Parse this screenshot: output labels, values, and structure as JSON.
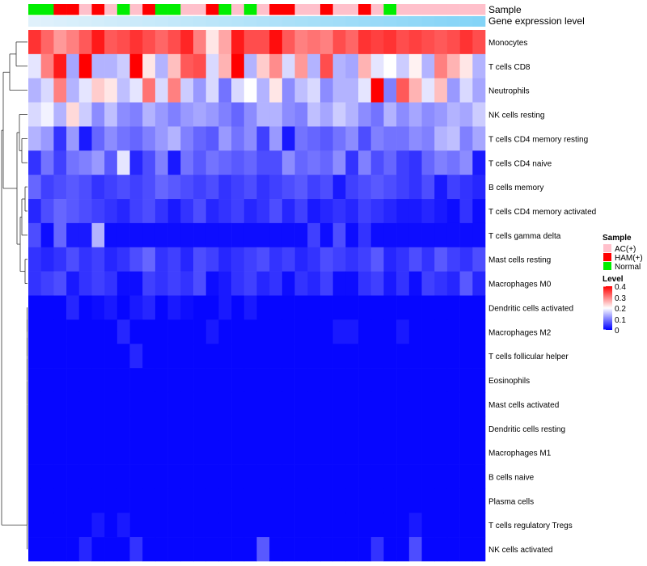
{
  "chart_data": {
    "type": "heatmap",
    "annotation_labels": [
      "Sample",
      "Gene expression level"
    ],
    "rows": [
      "Monocytes",
      "T cells CD8",
      "Neutrophils",
      "NK cells resting",
      "T cells CD4 memory resting",
      "T cells CD4 naive",
      "B cells memory",
      "T cells CD4 memory activated",
      "T cells gamma delta",
      "Mast cells resting",
      "Macrophages M0",
      "Dendritic cells activated",
      "Macrophages M2",
      "T cells follicular helper",
      "Eosinophils",
      "Mast cells activated",
      "Dendritic cells resting",
      "Macrophages M1",
      "B cells naive",
      "Plasma cells",
      "T cells regulatory  Tregs",
      "NK cells activated"
    ],
    "sample_groups": [
      "Normal",
      "Normal",
      "HAM(+)",
      "HAM(+)",
      "AC(+)",
      "HAM(+)",
      "AC(+)",
      "Normal",
      "AC(+)",
      "HAM(+)",
      "Normal",
      "Normal",
      "AC(+)",
      "AC(+)",
      "HAM(+)",
      "Normal",
      "AC(+)",
      "Normal",
      "AC(+)",
      "HAM(+)",
      "HAM(+)",
      "AC(+)",
      "AC(+)",
      "HAM(+)",
      "AC(+)",
      "AC(+)",
      "HAM(+)",
      "AC(+)",
      "Normal",
      "AC(+)",
      "AC(+)",
      "AC(+)",
      "AC(+)",
      "AC(+)",
      "AC(+)",
      "AC(+)"
    ],
    "expression_level": [
      0.02,
      0.04,
      0.06,
      0.08,
      0.1,
      0.12,
      0.14,
      0.16,
      0.18,
      0.2,
      0.22,
      0.24,
      0.26,
      0.28,
      0.3,
      0.32,
      0.34,
      0.36,
      0.38,
      0.4,
      0.42,
      0.44,
      0.46,
      0.48,
      0.5,
      0.52,
      0.54,
      0.56,
      0.58,
      0.6,
      0.62,
      0.64,
      0.66,
      0.68,
      0.7,
      0.72
    ],
    "values": [
      [
        0.36,
        0.32,
        0.28,
        0.3,
        0.33,
        0.38,
        0.33,
        0.34,
        0.36,
        0.34,
        0.32,
        0.34,
        0.37,
        0.3,
        0.22,
        0.27,
        0.38,
        0.34,
        0.34,
        0.39,
        0.33,
        0.3,
        0.31,
        0.3,
        0.34,
        0.32,
        0.36,
        0.35,
        0.36,
        0.34,
        0.35,
        0.34,
        0.33,
        0.34,
        0.36,
        0.34
      ],
      [
        0.18,
        0.3,
        0.38,
        0.13,
        0.4,
        0.14,
        0.14,
        0.16,
        0.4,
        0.22,
        0.14,
        0.25,
        0.33,
        0.34,
        0.17,
        0.26,
        0.4,
        0.14,
        0.24,
        0.29,
        0.17,
        0.28,
        0.14,
        0.34,
        0.14,
        0.13,
        0.26,
        0.18,
        0.2,
        0.16,
        0.21,
        0.14,
        0.3,
        0.26,
        0.22,
        0.14
      ],
      [
        0.14,
        0.17,
        0.3,
        0.14,
        0.18,
        0.24,
        0.22,
        0.15,
        0.18,
        0.31,
        0.17,
        0.3,
        0.16,
        0.12,
        0.17,
        0.09,
        0.17,
        0.2,
        0.14,
        0.22,
        0.11,
        0.15,
        0.17,
        0.11,
        0.14,
        0.14,
        0.18,
        0.4,
        0.1,
        0.33,
        0.26,
        0.18,
        0.25,
        0.12,
        0.17,
        0.13
      ],
      [
        0.17,
        0.19,
        0.14,
        0.23,
        0.16,
        0.11,
        0.15,
        0.11,
        0.1,
        0.14,
        0.12,
        0.1,
        0.12,
        0.13,
        0.12,
        0.1,
        0.08,
        0.11,
        0.14,
        0.14,
        0.11,
        0.1,
        0.15,
        0.13,
        0.16,
        0.14,
        0.11,
        0.09,
        0.14,
        0.11,
        0.13,
        0.11,
        0.12,
        0.14,
        0.13,
        0.16
      ],
      [
        0.14,
        0.12,
        0.04,
        0.12,
        0.02,
        0.08,
        0.11,
        0.09,
        0.08,
        0.1,
        0.12,
        0.14,
        0.1,
        0.08,
        0.07,
        0.12,
        0.09,
        0.11,
        0.05,
        0.12,
        0.02,
        0.09,
        0.08,
        0.07,
        0.09,
        0.11,
        0.06,
        0.1,
        0.09,
        0.09,
        0.11,
        0.1,
        0.14,
        0.15,
        0.1,
        0.13
      ],
      [
        0.04,
        0.09,
        0.05,
        0.09,
        0.1,
        0.12,
        0.07,
        0.18,
        0.03,
        0.06,
        0.1,
        0.02,
        0.09,
        0.07,
        0.09,
        0.08,
        0.07,
        0.08,
        0.06,
        0.06,
        0.11,
        0.08,
        0.09,
        0.08,
        0.11,
        0.04,
        0.1,
        0.06,
        0.08,
        0.05,
        0.04,
        0.08,
        0.1,
        0.09,
        0.11,
        0.02
      ],
      [
        0.08,
        0.05,
        0.06,
        0.07,
        0.06,
        0.04,
        0.05,
        0.06,
        0.05,
        0.06,
        0.08,
        0.07,
        0.06,
        0.05,
        0.06,
        0.04,
        0.05,
        0.06,
        0.04,
        0.05,
        0.06,
        0.07,
        0.05,
        0.06,
        0.02,
        0.05,
        0.06,
        0.07,
        0.06,
        0.05,
        0.04,
        0.06,
        0.02,
        0.05,
        0.04,
        0.03
      ],
      [
        0.03,
        0.06,
        0.08,
        0.07,
        0.06,
        0.05,
        0.04,
        0.03,
        0.05,
        0.06,
        0.04,
        0.02,
        0.04,
        0.06,
        0.03,
        0.04,
        0.05,
        0.03,
        0.04,
        0.06,
        0.03,
        0.05,
        0.02,
        0.03,
        0.04,
        0.03,
        0.05,
        0.04,
        0.03,
        0.02,
        0.02,
        0.03,
        0.02,
        0.01,
        0.04,
        0.01
      ],
      [
        0.06,
        0.01,
        0.08,
        0.02,
        0.02,
        0.14,
        0.01,
        0.01,
        0.01,
        0.01,
        0.01,
        0.01,
        0.01,
        0.01,
        0.01,
        0.01,
        0.01,
        0.01,
        0.01,
        0.01,
        0.01,
        0.01,
        0.05,
        0.01,
        0.06,
        0.01,
        0.04,
        0.01,
        0.01,
        0.01,
        0.01,
        0.01,
        0.01,
        0.01,
        0.01,
        0.01
      ],
      [
        0.04,
        0.03,
        0.04,
        0.06,
        0.04,
        0.05,
        0.03,
        0.04,
        0.06,
        0.08,
        0.04,
        0.05,
        0.03,
        0.06,
        0.05,
        0.03,
        0.04,
        0.05,
        0.06,
        0.04,
        0.05,
        0.03,
        0.04,
        0.06,
        0.05,
        0.04,
        0.05,
        0.07,
        0.03,
        0.04,
        0.06,
        0.04,
        0.07,
        0.05,
        0.04,
        0.06
      ],
      [
        0.04,
        0.05,
        0.06,
        0.02,
        0.04,
        0.05,
        0.04,
        0.01,
        0.01,
        0.05,
        0.04,
        0.05,
        0.04,
        0.06,
        0.01,
        0.02,
        0.04,
        0.05,
        0.03,
        0.04,
        0.01,
        0.04,
        0.03,
        0.05,
        0.01,
        0.01,
        0.04,
        0.05,
        0.02,
        0.04,
        0.01,
        0.05,
        0.04,
        0.03,
        0.07,
        0.03
      ],
      [
        0.005,
        0.005,
        0.005,
        0.03,
        0.005,
        0.01,
        0.02,
        0.005,
        0.02,
        0.03,
        0.005,
        0.02,
        0.01,
        0.005,
        0.005,
        0.02,
        0.005,
        0.02,
        0.005,
        0.005,
        0.005,
        0.005,
        0.005,
        0.005,
        0.005,
        0.005,
        0.005,
        0.005,
        0.005,
        0.005,
        0.005,
        0.005,
        0.005,
        0.005,
        0.005,
        0.005
      ],
      [
        0.005,
        0.005,
        0.005,
        0.005,
        0.005,
        0.005,
        0.005,
        0.03,
        0.005,
        0.005,
        0.005,
        0.005,
        0.005,
        0.005,
        0.02,
        0.005,
        0.005,
        0.005,
        0.005,
        0.005,
        0.005,
        0.005,
        0.005,
        0.005,
        0.02,
        0.02,
        0.005,
        0.005,
        0.005,
        0.02,
        0.005,
        0.005,
        0.005,
        0.005,
        0.005,
        0.005
      ],
      [
        0.005,
        0.005,
        0.005,
        0.005,
        0.005,
        0.005,
        0.005,
        0.005,
        0.03,
        0.005,
        0.005,
        0.005,
        0.005,
        0.005,
        0.005,
        0.005,
        0.005,
        0.005,
        0.005,
        0.005,
        0.005,
        0.005,
        0.005,
        0.005,
        0.005,
        0.005,
        0.005,
        0.005,
        0.005,
        0.005,
        0.005,
        0.005,
        0.005,
        0.005,
        0.005,
        0.005
      ],
      [
        0.005,
        0.005,
        0.005,
        0.005,
        0.005,
        0.005,
        0.005,
        0.005,
        0.005,
        0.005,
        0.005,
        0.005,
        0.005,
        0.005,
        0.005,
        0.005,
        0.005,
        0.005,
        0.005,
        0.005,
        0.005,
        0.005,
        0.005,
        0.005,
        0.005,
        0.005,
        0.005,
        0.005,
        0.005,
        0.005,
        0.005,
        0.005,
        0.005,
        0.005,
        0.005,
        0.005
      ],
      [
        0.005,
        0.005,
        0.005,
        0.005,
        0.005,
        0.005,
        0.005,
        0.005,
        0.005,
        0.005,
        0.005,
        0.005,
        0.005,
        0.005,
        0.005,
        0.005,
        0.005,
        0.005,
        0.005,
        0.005,
        0.005,
        0.005,
        0.005,
        0.005,
        0.005,
        0.005,
        0.005,
        0.005,
        0.005,
        0.005,
        0.005,
        0.005,
        0.005,
        0.005,
        0.005,
        0.005
      ],
      [
        0.005,
        0.005,
        0.005,
        0.005,
        0.005,
        0.005,
        0.005,
        0.005,
        0.005,
        0.005,
        0.005,
        0.005,
        0.005,
        0.005,
        0.005,
        0.005,
        0.005,
        0.005,
        0.005,
        0.005,
        0.005,
        0.005,
        0.005,
        0.005,
        0.005,
        0.005,
        0.005,
        0.005,
        0.005,
        0.005,
        0.005,
        0.005,
        0.005,
        0.005,
        0.005,
        0.005
      ],
      [
        0.005,
        0.005,
        0.005,
        0.005,
        0.005,
        0.005,
        0.005,
        0.005,
        0.005,
        0.005,
        0.005,
        0.005,
        0.005,
        0.005,
        0.005,
        0.005,
        0.005,
        0.005,
        0.005,
        0.005,
        0.005,
        0.005,
        0.005,
        0.005,
        0.005,
        0.005,
        0.005,
        0.005,
        0.005,
        0.005,
        0.005,
        0.005,
        0.005,
        0.005,
        0.005,
        0.005
      ],
      [
        0.005,
        0.005,
        0.005,
        0.005,
        0.005,
        0.005,
        0.005,
        0.005,
        0.005,
        0.005,
        0.005,
        0.005,
        0.005,
        0.005,
        0.005,
        0.005,
        0.005,
        0.005,
        0.005,
        0.005,
        0.005,
        0.005,
        0.005,
        0.005,
        0.005,
        0.005,
        0.005,
        0.005,
        0.005,
        0.005,
        0.005,
        0.005,
        0.005,
        0.005,
        0.005,
        0.005
      ],
      [
        0.005,
        0.005,
        0.005,
        0.005,
        0.005,
        0.005,
        0.005,
        0.005,
        0.005,
        0.005,
        0.005,
        0.005,
        0.005,
        0.005,
        0.005,
        0.005,
        0.005,
        0.005,
        0.005,
        0.005,
        0.005,
        0.005,
        0.005,
        0.005,
        0.005,
        0.005,
        0.005,
        0.005,
        0.005,
        0.005,
        0.005,
        0.005,
        0.005,
        0.005,
        0.005,
        0.005
      ],
      [
        0.005,
        0.005,
        0.005,
        0.005,
        0.005,
        0.02,
        0.005,
        0.02,
        0.005,
        0.005,
        0.005,
        0.005,
        0.005,
        0.005,
        0.005,
        0.005,
        0.005,
        0.005,
        0.005,
        0.005,
        0.005,
        0.005,
        0.005,
        0.005,
        0.005,
        0.005,
        0.005,
        0.005,
        0.005,
        0.005,
        0.02,
        0.005,
        0.005,
        0.005,
        0.005,
        0.005
      ],
      [
        0.005,
        0.005,
        0.005,
        0.005,
        0.03,
        0.005,
        0.005,
        0.005,
        0.04,
        0.005,
        0.005,
        0.005,
        0.005,
        0.005,
        0.005,
        0.005,
        0.005,
        0.005,
        0.07,
        0.005,
        0.005,
        0.005,
        0.005,
        0.005,
        0.005,
        0.005,
        0.005,
        0.04,
        0.005,
        0.005,
        0.06,
        0.005,
        0.005,
        0.005,
        0.005,
        0.005
      ]
    ],
    "level_range": [
      0,
      0.4
    ],
    "legend": {
      "sample_title": "Sample",
      "sample_entries": [
        "AC(+)",
        "HAM(+)",
        "Normal"
      ],
      "level_title": "Level",
      "level_ticks": [
        "0.4",
        "0.3",
        "0.2",
        "0.1",
        "0"
      ],
      "position": "right"
    },
    "dendrogram": "rows"
  },
  "colors": {
    "low": "#0000ff",
    "mid": "#ffffff",
    "high": "#ff0000",
    "group_ac": "#ffc0cb",
    "group_ham": "#ff0000",
    "group_normal": "#00ee00",
    "expression_low": "#e3f2fb",
    "expression_high": "#5ec8f5",
    "dendrogram": "#333333"
  }
}
